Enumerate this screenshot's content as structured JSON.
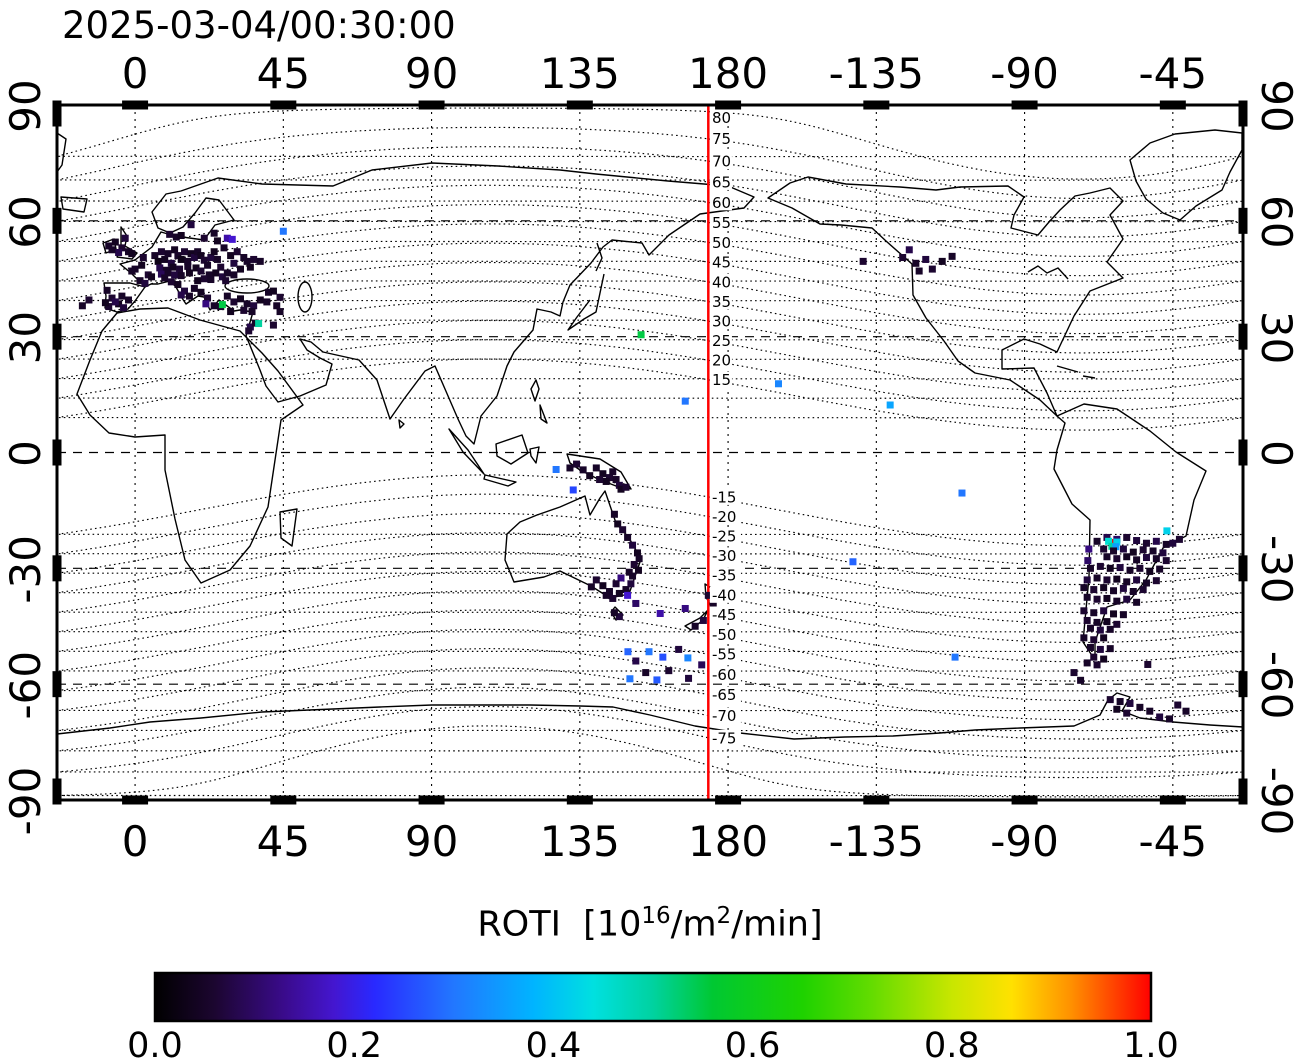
{
  "header": {
    "timestamp": "2025-03-04/00:30:00"
  },
  "colorbar": {
    "label_prefix": "ROTI  [10",
    "label_sup1": "16",
    "label_mid": "/m",
    "label_sup2": "2",
    "label_suffix": "/min]",
    "ticks": [
      "0.0",
      "0.2",
      "0.4",
      "0.6",
      "0.8",
      "1.0"
    ],
    "stops": [
      [
        0,
        "#000000"
      ],
      [
        0.06,
        "#1c0630"
      ],
      [
        0.13,
        "#3a0b8c"
      ],
      [
        0.18,
        "#4416d0"
      ],
      [
        0.22,
        "#2929ff"
      ],
      [
        0.3,
        "#2277ff"
      ],
      [
        0.38,
        "#00b4ff"
      ],
      [
        0.44,
        "#00e0e0"
      ],
      [
        0.5,
        "#00d2a0"
      ],
      [
        0.56,
        "#00c832"
      ],
      [
        0.65,
        "#1ed200"
      ],
      [
        0.72,
        "#64dc00"
      ],
      [
        0.8,
        "#c8e600"
      ],
      [
        0.86,
        "#ffe100"
      ],
      [
        0.92,
        "#ff9000"
      ],
      [
        1,
        "#ff0000"
      ]
    ]
  },
  "chart_data": {
    "type": "scatter",
    "subtype": "geographic-roti-map",
    "projection": "equirectangular",
    "lon_left": -23.7,
    "lon_ticks": [
      0,
      45,
      90,
      135,
      180,
      -135,
      -90,
      -45
    ],
    "lat_ticks": [
      90,
      60,
      30,
      0,
      -30,
      -60,
      -90
    ],
    "lat_grid": [
      60,
      30,
      0,
      -30,
      -60
    ],
    "pole_lat": 80.8,
    "pole_lon": -72.7,
    "contour_levels": [
      15,
      20,
      25,
      30,
      35,
      40,
      45,
      50,
      55,
      60,
      65,
      70,
      75,
      80,
      -15,
      -20,
      -25,
      -30,
      -35,
      -40,
      -45,
      -50,
      -55,
      -60,
      -65,
      -70,
      -75,
      -80
    ],
    "contour_labeled": [
      80,
      75,
      70,
      65,
      60,
      55,
      50,
      45,
      40,
      35,
      30,
      25,
      20,
      15,
      -15,
      -20,
      -25,
      -30,
      -35,
      -40,
      -45,
      -50,
      -55,
      -60,
      -65,
      -70,
      -75
    ],
    "contour_label_lon": 174.8,
    "red_line_lon": 174,
    "red_line_color": "#ff0000",
    "point_size": 7,
    "points": [
      [
        -8,
        53.5,
        0.05
      ],
      [
        -6,
        54.5,
        0.04
      ],
      [
        -4,
        53,
        0.06
      ],
      [
        -2,
        52,
        0.05
      ],
      [
        -3,
        55.5,
        0.07
      ],
      [
        -1,
        51.5,
        0.04
      ],
      [
        -5,
        51.8,
        0.08
      ],
      [
        -7,
        52.5,
        0.05
      ],
      [
        -8.5,
        42,
        0.05
      ],
      [
        -7,
        40,
        0.06
      ],
      [
        -5,
        38.5,
        0.04
      ],
      [
        -3.5,
        37.5,
        0.07
      ],
      [
        -4,
        40.5,
        0.05
      ],
      [
        -6,
        39,
        0.08
      ],
      [
        -2,
        39.5,
        0.05
      ],
      [
        -8,
        37.8,
        0.06
      ],
      [
        -9,
        38.8,
        0.04
      ],
      [
        -14,
        39.5,
        0.06
      ],
      [
        -16,
        38,
        0.05
      ],
      [
        0,
        47.5,
        0.05
      ],
      [
        2,
        48.5,
        0.04
      ],
      [
        4,
        46,
        0.06
      ],
      [
        1.5,
        44.5,
        0.05
      ],
      [
        3,
        43.8,
        0.07
      ],
      [
        -1,
        47,
        0.05
      ],
      [
        5,
        45.5,
        0.04
      ],
      [
        2.5,
        50.5,
        0.06
      ],
      [
        6,
        51,
        0.05
      ],
      [
        7,
        49.5,
        0.03
      ],
      [
        8,
        52,
        0.06
      ],
      [
        9,
        50,
        0.04
      ],
      [
        10,
        51.5,
        0.05
      ],
      [
        11,
        49,
        0.07
      ],
      [
        12,
        52.5,
        0.04
      ],
      [
        13,
        51,
        0.05
      ],
      [
        14,
        50,
        0.03
      ],
      [
        15,
        52,
        0.06
      ],
      [
        16,
        49.5,
        0.05
      ],
      [
        17,
        51.5,
        0.04
      ],
      [
        18,
        50.5,
        0.07
      ],
      [
        19,
        52,
        0.05
      ],
      [
        20,
        51,
        0.04
      ],
      [
        21,
        49.8,
        0.06
      ],
      [
        7.5,
        47.8,
        0.08
      ],
      [
        9.5,
        47.2,
        0.05
      ],
      [
        11.5,
        48,
        0.04
      ],
      [
        13.5,
        47.5,
        0.06
      ],
      [
        16,
        48.2,
        0.05
      ],
      [
        18.5,
        47.8,
        0.04
      ],
      [
        8,
        46.2,
        0.09
      ],
      [
        10,
        46.5,
        0.05
      ],
      [
        12,
        46,
        0.07
      ],
      [
        14,
        45.8,
        0.05
      ],
      [
        16.5,
        46.5,
        0.04
      ],
      [
        20,
        47,
        0.06
      ],
      [
        22,
        48.5,
        0.05
      ],
      [
        23,
        50.5,
        0.07
      ],
      [
        24,
        52,
        0.04
      ],
      [
        25,
        50,
        0.05
      ],
      [
        26,
        48,
        0.06
      ],
      [
        22.5,
        46,
        0.05
      ],
      [
        24.5,
        46.5,
        0.04
      ],
      [
        26.5,
        45.5,
        0.07
      ],
      [
        28,
        46.5,
        0.05
      ],
      [
        21,
        45,
        0.06
      ],
      [
        19,
        44.5,
        0.04
      ],
      [
        23,
        44.8,
        0.05
      ],
      [
        9,
        45.2,
        0.05
      ],
      [
        11,
        44.2,
        0.06
      ],
      [
        13,
        43.5,
        0.04
      ],
      [
        15,
        41.8,
        0.07
      ],
      [
        16.5,
        40.5,
        0.05
      ],
      [
        14,
        40.8,
        0.08
      ],
      [
        18,
        42.5,
        0.05
      ],
      [
        20,
        41.5,
        0.04
      ],
      [
        22,
        40,
        0.06
      ],
      [
        24,
        38,
        0.05
      ],
      [
        21.5,
        38.5,
        0.12
      ],
      [
        26,
        37.8,
        0.05
      ],
      [
        27,
        53,
        0.05
      ],
      [
        29,
        51,
        0.04
      ],
      [
        31,
        52,
        0.06
      ],
      [
        33,
        50.5,
        0.05
      ],
      [
        30,
        49,
        0.07
      ],
      [
        32,
        47.5,
        0.04
      ],
      [
        34,
        49.5,
        0.05
      ],
      [
        36,
        50,
        0.06
      ],
      [
        35,
        48,
        0.04
      ],
      [
        38,
        49.5,
        0.05
      ],
      [
        27.5,
        44.5,
        0.06
      ],
      [
        30,
        46,
        0.05
      ],
      [
        28,
        40.5,
        0.05
      ],
      [
        30,
        39,
        0.06
      ],
      [
        32,
        39.8,
        0.04
      ],
      [
        34,
        38.5,
        0.05
      ],
      [
        36,
        38,
        0.07
      ],
      [
        38,
        39.5,
        0.04
      ],
      [
        40,
        39,
        0.05
      ],
      [
        33,
        36.8,
        0.06
      ],
      [
        35.5,
        36.5,
        0.05
      ],
      [
        29,
        36.5,
        0.04
      ],
      [
        35,
        32.5,
        0.08
      ],
      [
        36.5,
        33.5,
        0.05
      ],
      [
        34.5,
        31.5,
        0.06
      ],
      [
        40.5,
        41.5,
        0.05
      ],
      [
        42,
        41.8,
        0.04
      ],
      [
        44,
        40.2,
        0.06
      ],
      [
        42,
        33,
        0.06
      ],
      [
        44,
        36.5,
        0.05
      ],
      [
        43,
        38,
        0.05
      ],
      [
        10.5,
        56.5,
        0.06
      ],
      [
        12.5,
        55.8,
        0.05
      ],
      [
        14,
        56.2,
        0.04
      ],
      [
        17,
        59,
        0.07
      ],
      [
        24,
        56.8,
        0.05
      ],
      [
        21,
        55.5,
        0.06
      ],
      [
        25,
        54.8,
        0.04
      ],
      [
        28,
        55.5,
        0.15
      ],
      [
        29.5,
        55.2,
        0.18
      ],
      [
        45,
        57.3,
        0.3
      ],
      [
        26.5,
        38.3,
        0.55
      ],
      [
        37.5,
        33.4,
        0.5
      ],
      [
        -127,
        50.5,
        0.06
      ],
      [
        -123,
        49,
        0.05
      ],
      [
        -120,
        50,
        0.07
      ],
      [
        -115,
        49.5,
        0.04
      ],
      [
        -118,
        47.5,
        0.06
      ],
      [
        -112,
        50.8,
        0.05
      ],
      [
        -125,
        52.5,
        0.08
      ],
      [
        -122,
        47,
        0.05
      ],
      [
        -139,
        49.5,
        0.06
      ],
      [
        153.6,
        30.5,
        0.55
      ],
      [
        167,
        13.3,
        0.3
      ],
      [
        -164.7,
        17.8,
        0.32
      ],
      [
        -130.8,
        12.3,
        0.36
      ],
      [
        -109,
        -10.5,
        0.3
      ],
      [
        -142.1,
        -28.3,
        0.28
      ],
      [
        -111.1,
        -53,
        0.3
      ],
      [
        -46.8,
        -20.3,
        0.42
      ],
      [
        140,
        -4,
        0.05
      ],
      [
        142,
        -5.5,
        0.04
      ],
      [
        144,
        -6.5,
        0.06
      ],
      [
        146,
        -7,
        0.05
      ],
      [
        147,
        -8.5,
        0.07
      ],
      [
        143,
        -7.5,
        0.04
      ],
      [
        145,
        -5,
        0.05
      ],
      [
        141,
        -7,
        0.06
      ],
      [
        138,
        -6,
        0.04
      ],
      [
        136,
        -4.5,
        0.05
      ],
      [
        134,
        -3,
        0.06
      ],
      [
        132,
        -4,
        0.05
      ],
      [
        147.5,
        -9.5,
        0.04
      ],
      [
        149,
        -9,
        0.06
      ],
      [
        127.8,
        -4.4,
        0.3
      ],
      [
        133,
        -9.7,
        0.25
      ],
      [
        145.5,
        -16,
        0.05
      ],
      [
        146.5,
        -18.5,
        0.04
      ],
      [
        148,
        -20,
        0.06
      ],
      [
        149.5,
        -22,
        0.05
      ],
      [
        151,
        -24,
        0.07
      ],
      [
        152.5,
        -26,
        0.04
      ],
      [
        153,
        -27.5,
        0.05
      ],
      [
        151.5,
        -29,
        0.06
      ],
      [
        152.8,
        -30.5,
        0.04
      ],
      [
        151,
        -32,
        0.05
      ],
      [
        150.5,
        -34,
        0.07
      ],
      [
        149,
        -35.5,
        0.05
      ],
      [
        147,
        -36.5,
        0.04
      ],
      [
        145,
        -37.8,
        0.06
      ],
      [
        144,
        -36,
        0.05
      ],
      [
        142,
        -34.5,
        0.04
      ],
      [
        147.5,
        -32.5,
        0.12
      ],
      [
        150,
        -31,
        0.05
      ],
      [
        146,
        -34,
        0.06
      ],
      [
        143,
        -37,
        0.05
      ],
      [
        149.5,
        -37,
        0.18
      ],
      [
        138.5,
        -34.8,
        0.05
      ],
      [
        140,
        -33,
        0.06
      ],
      [
        147,
        -42.5,
        0.07
      ],
      [
        145.5,
        -41.5,
        0.05
      ],
      [
        152,
        -39.1,
        0.1
      ],
      [
        159.4,
        -41.7,
        0.15
      ],
      [
        167,
        -40.4,
        0.12
      ],
      [
        174,
        -37,
        0.06
      ],
      [
        175.5,
        -39,
        0.05
      ],
      [
        172.5,
        -43.5,
        0.07
      ],
      [
        170,
        -45,
        0.05
      ],
      [
        149.6,
        -51.6,
        0.28
      ],
      [
        156,
        -51.6,
        0.3
      ],
      [
        160.2,
        -53,
        0.26
      ],
      [
        167.8,
        -53.2,
        0.32
      ],
      [
        150.2,
        -58.6,
        0.3
      ],
      [
        158.4,
        -58.9,
        0.27
      ],
      [
        152,
        -54,
        0.08
      ],
      [
        162,
        -56.5,
        0.06
      ],
      [
        168,
        -58.5,
        0.07
      ],
      [
        155,
        -57,
        0.05
      ],
      [
        165,
        -51,
        0.07
      ],
      [
        172,
        -55,
        0.09
      ],
      [
        -65,
        -22,
        0.08
      ],
      [
        -62,
        -22.5,
        0.1
      ],
      [
        -59,
        -22,
        0.06
      ],
      [
        -56,
        -22.8,
        0.07
      ],
      [
        -68,
        -23,
        0.05
      ],
      [
        -53,
        -23.5,
        0.06
      ],
      [
        -50,
        -23,
        0.08
      ],
      [
        -47,
        -23.8,
        0.05
      ],
      [
        -45,
        -23.5,
        0.07
      ],
      [
        -43,
        -22.5,
        0.06
      ],
      [
        -63.2,
        -23.3,
        1.0
      ],
      [
        -64.5,
        -23,
        0.45
      ],
      [
        -62,
        -23.2,
        0.42
      ],
      [
        -63.5,
        -24.3,
        0.5
      ],
      [
        -62.3,
        -24.4,
        0.35
      ],
      [
        -66,
        -25,
        0.06
      ],
      [
        -63,
        -25.5,
        0.05
      ],
      [
        -60,
        -25,
        0.07
      ],
      [
        -57,
        -25.8,
        0.04
      ],
      [
        -54,
        -25.2,
        0.06
      ],
      [
        -51,
        -25.5,
        0.05
      ],
      [
        -48,
        -26,
        0.07
      ],
      [
        -65,
        -27,
        0.05
      ],
      [
        -62,
        -27.5,
        0.06
      ],
      [
        -59,
        -27,
        0.04
      ],
      [
        -56,
        -27.8,
        0.05
      ],
      [
        -53,
        -27.2,
        0.07
      ],
      [
        -50,
        -27.5,
        0.05
      ],
      [
        -47,
        -28,
        0.06
      ],
      [
        -70,
        -30,
        0.05
      ],
      [
        -67,
        -29.5,
        0.06
      ],
      [
        -64,
        -30,
        0.04
      ],
      [
        -61,
        -29.8,
        0.07
      ],
      [
        -58,
        -30.5,
        0.05
      ],
      [
        -55,
        -30,
        0.06
      ],
      [
        -52,
        -30.8,
        0.04
      ],
      [
        -49,
        -30.2,
        0.05
      ],
      [
        -70.5,
        -25,
        0.12
      ],
      [
        -70.8,
        -28,
        0.1
      ],
      [
        -71,
        -33,
        0.07
      ],
      [
        -68,
        -32.5,
        0.05
      ],
      [
        -65,
        -33,
        0.06
      ],
      [
        -62,
        -32.8,
        0.04
      ],
      [
        -59,
        -33.5,
        0.05
      ],
      [
        -56,
        -33,
        0.07
      ],
      [
        -53,
        -33.8,
        0.05
      ],
      [
        -50,
        -33.2,
        0.06
      ],
      [
        -72,
        -35,
        0.05
      ],
      [
        -69,
        -35.5,
        0.06
      ],
      [
        -66,
        -35,
        0.04
      ],
      [
        -63,
        -35.8,
        0.05
      ],
      [
        -60,
        -35.2,
        0.07
      ],
      [
        -57,
        -36,
        0.05
      ],
      [
        -54,
        -35.5,
        0.06
      ],
      [
        -71,
        -37.5,
        0.05
      ],
      [
        -68,
        -38,
        0.06
      ],
      [
        -65,
        -37.8,
        0.04
      ],
      [
        -62,
        -38.5,
        0.05
      ],
      [
        -59,
        -38,
        0.07
      ],
      [
        -56,
        -38.8,
        0.05
      ],
      [
        -72,
        -41,
        0.06
      ],
      [
        -69,
        -41.5,
        0.05
      ],
      [
        -66,
        -41,
        0.07
      ],
      [
        -63,
        -41.8,
        0.04
      ],
      [
        -60,
        -42,
        0.05
      ],
      [
        -71,
        -43.5,
        0.06
      ],
      [
        -68,
        -44,
        0.05
      ],
      [
        -65,
        -43.8,
        0.04
      ],
      [
        -62,
        -44.5,
        0.06
      ],
      [
        -70,
        -45.5,
        0.05
      ],
      [
        -67,
        -46,
        0.07
      ],
      [
        -64,
        -45.8,
        0.05
      ],
      [
        -72,
        -48,
        0.05
      ],
      [
        -69,
        -48.5,
        0.06
      ],
      [
        -66,
        -48,
        0.04
      ],
      [
        -70,
        -50.5,
        0.05
      ],
      [
        -67,
        -51,
        0.07
      ],
      [
        -64,
        -50.8,
        0.05
      ],
      [
        -69,
        -53,
        0.06
      ],
      [
        -66,
        -53.5,
        0.04
      ],
      [
        -71,
        -54.5,
        0.05
      ],
      [
        -68,
        -55,
        0.06
      ],
      [
        -52.6,
        -54.9,
        0.06
      ],
      [
        -75,
        -57,
        0.06
      ],
      [
        -73,
        -59,
        0.05
      ],
      [
        -64,
        -64,
        0.06
      ],
      [
        -61,
        -64.5,
        0.05
      ],
      [
        -58,
        -65,
        0.07
      ],
      [
        -55,
        -66,
        0.05
      ],
      [
        -62,
        -66.5,
        0.04
      ],
      [
        -59,
        -67.5,
        0.06
      ],
      [
        -52,
        -67,
        0.05
      ],
      [
        -49,
        -68.5,
        0.07
      ],
      [
        -46,
        -69,
        0.05
      ],
      [
        -43.5,
        -65.4,
        0.06
      ],
      [
        -41,
        -67,
        0.05
      ]
    ]
  }
}
